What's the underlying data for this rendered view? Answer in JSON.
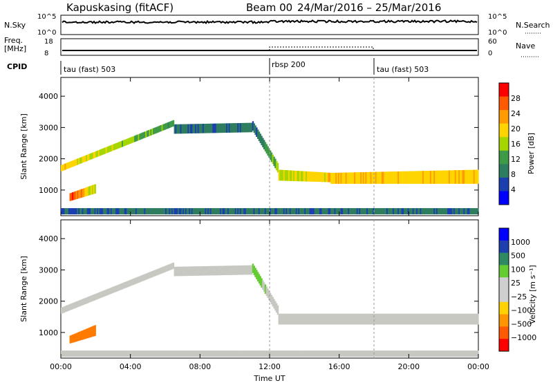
{
  "header": {
    "title": "Kapuskasing (fitACF)",
    "beam": "Beam 00",
    "date_range": "24/Mar/2016 – 25/Mar/2016"
  },
  "noise_panel": {
    "left_label": "N.Sky",
    "right_label": "N.Search",
    "left_ticks": [
      "10^5",
      "10^0"
    ],
    "right_ticks": [
      "10^5",
      "10^0"
    ]
  },
  "freq_panel": {
    "left_label_line1": "Freq.",
    "left_label_line2": "[MHz]",
    "right_label": "Nave",
    "left_ticks": [
      "18",
      "8"
    ],
    "right_ticks": [
      "60",
      "0"
    ]
  },
  "cpid_panel": {
    "label": "CPID",
    "segments": [
      {
        "name": "tau (fast) 503",
        "start_hour": 0,
        "end_hour": 12
      },
      {
        "name": "rbsp 200",
        "start_hour": 12,
        "end_hour": 18
      },
      {
        "name": "tau (fast) 503",
        "start_hour": 18,
        "end_hour": 24
      }
    ]
  },
  "power_colorbar": {
    "label": "Power [dB]",
    "ticks": [
      "28",
      "24",
      "20",
      "16",
      "12",
      "8",
      "4"
    ],
    "colors": [
      "#ff0000",
      "#ff5a00",
      "#ff9a00",
      "#ffd500",
      "#a6d600",
      "#3f9a47",
      "#2e7d5e",
      "#1c3fb0",
      "#0000ff"
    ]
  },
  "velocity_colorbar": {
    "label": "Velocity [m s⁻¹]",
    "ticks": [
      "1000",
      "500",
      "100",
      "25",
      "−25",
      "−100",
      "−500",
      "−1000"
    ],
    "colors": [
      "#0000ff",
      "#1f3fae",
      "#2f8a63",
      "#66cc33",
      "#cfcfcf",
      "#cfcfcf",
      "#ffd200",
      "#ff9500",
      "#ff5a00",
      "#ff0000"
    ]
  },
  "chart_data": [
    {
      "type": "heatmap",
      "title": "Power",
      "xlabel": "Time UT",
      "ylabel": "Slant Range [km]",
      "x_ticks": [
        "00:00",
        "04:00",
        "08:00",
        "12:00",
        "16:00",
        "20:00",
        "00:00"
      ],
      "y_ticks": [
        1000,
        2000,
        3000,
        4000
      ],
      "xlim_hours": [
        0,
        24
      ],
      "ylim_km": [
        180,
        4600
      ],
      "bands": [
        {
          "hours": [
            0.0,
            6.5
          ],
          "range_start_km": [
            1600,
            3050
          ],
          "range_end_km": [
            1800,
            3250
          ],
          "color_value_db": [
            20,
            12
          ]
        },
        {
          "hours": [
            6.5,
            11.0
          ],
          "range_start_km": [
            2800,
            2850
          ],
          "range_end_km": [
            3100,
            3150
          ],
          "color_value_db": [
            8,
            8
          ]
        },
        {
          "hours": [
            11.0,
            12.5
          ],
          "range_start_km": [
            2900,
            1500
          ],
          "range_end_km": [
            3200,
            1800
          ],
          "color_value_db": [
            8,
            16
          ]
        },
        {
          "hours": [
            12.5,
            15.5
          ],
          "range_start_km": [
            1300,
            1250
          ],
          "range_end_km": [
            1650,
            1550
          ],
          "color_value_db": [
            16,
            20
          ]
        },
        {
          "hours": [
            15.5,
            24.0
          ],
          "range_start_km": [
            1200,
            1200
          ],
          "range_end_km": [
            1550,
            1650
          ],
          "color_value_db": [
            20,
            20
          ]
        },
        {
          "hours": [
            0.5,
            2.0
          ],
          "range_start_km": [
            650,
            900
          ],
          "range_end_km": [
            900,
            1200
          ],
          "color_value_db": [
            28,
            16
          ]
        },
        {
          "hours": [
            0.0,
            24.0
          ],
          "range_start_km": [
            220,
            220
          ],
          "range_end_km": [
            420,
            420
          ],
          "color_value_db": [
            8,
            8
          ]
        }
      ]
    },
    {
      "type": "heatmap",
      "title": "Velocity",
      "xlabel": "Time UT",
      "ylabel": "Slant Range [km]",
      "x_ticks": [
        "00:00",
        "04:00",
        "08:00",
        "12:00",
        "16:00",
        "20:00",
        "00:00"
      ],
      "y_ticks": [
        1000,
        2000,
        3000,
        4000
      ],
      "xlim_hours": [
        0,
        24
      ],
      "ylim_km": [
        180,
        4600
      ],
      "bands": [
        {
          "hours": [
            0.0,
            6.5
          ],
          "range_start_km": [
            1600,
            3050
          ],
          "range_end_km": [
            1800,
            3250
          ],
          "velocity_mps": [
            0,
            0
          ]
        },
        {
          "hours": [
            6.5,
            11.0
          ],
          "range_start_km": [
            2800,
            2850
          ],
          "range_end_km": [
            3100,
            3150
          ],
          "velocity_mps": [
            0,
            0
          ]
        },
        {
          "hours": [
            11.0,
            12.5
          ],
          "range_start_km": [
            2900,
            1500
          ],
          "range_end_km": [
            3200,
            1800
          ],
          "velocity_mps": [
            100,
            0
          ]
        },
        {
          "hours": [
            12.5,
            24.0
          ],
          "range_start_km": [
            1250,
            1250
          ],
          "range_end_km": [
            1600,
            1600
          ],
          "velocity_mps": [
            0,
            0
          ]
        },
        {
          "hours": [
            0.5,
            2.0
          ],
          "range_start_km": [
            650,
            900
          ],
          "range_end_km": [
            900,
            1250
          ],
          "velocity_mps": [
            -400,
            -400
          ]
        },
        {
          "hours": [
            0.0,
            24.0
          ],
          "range_start_km": [
            220,
            220
          ],
          "range_end_km": [
            420,
            420
          ],
          "velocity_mps": [
            0,
            0
          ]
        }
      ]
    }
  ]
}
